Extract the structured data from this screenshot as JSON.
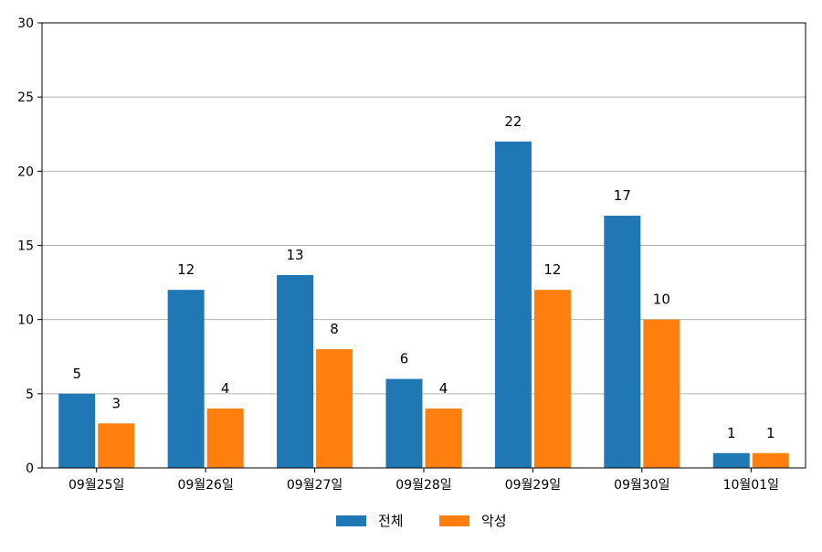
{
  "chart_data": {
    "type": "bar",
    "categories": [
      "09월25일",
      "09월26일",
      "09월27일",
      "09월28일",
      "09월29일",
      "09월30일",
      "10월01일"
    ],
    "series": [
      {
        "name": "전체",
        "values": [
          5,
          12,
          13,
          6,
          22,
          17,
          1
        ],
        "color": "#1f77b4"
      },
      {
        "name": "악성",
        "values": [
          3,
          4,
          8,
          4,
          12,
          10,
          1
        ],
        "color": "#ff7f0e"
      }
    ],
    "ylim": [
      0,
      30
    ],
    "yticks": [
      0,
      5,
      10,
      15,
      20,
      25,
      30
    ],
    "grid": "horizontal",
    "legend_position": "bottom-center",
    "data_labels": true
  }
}
